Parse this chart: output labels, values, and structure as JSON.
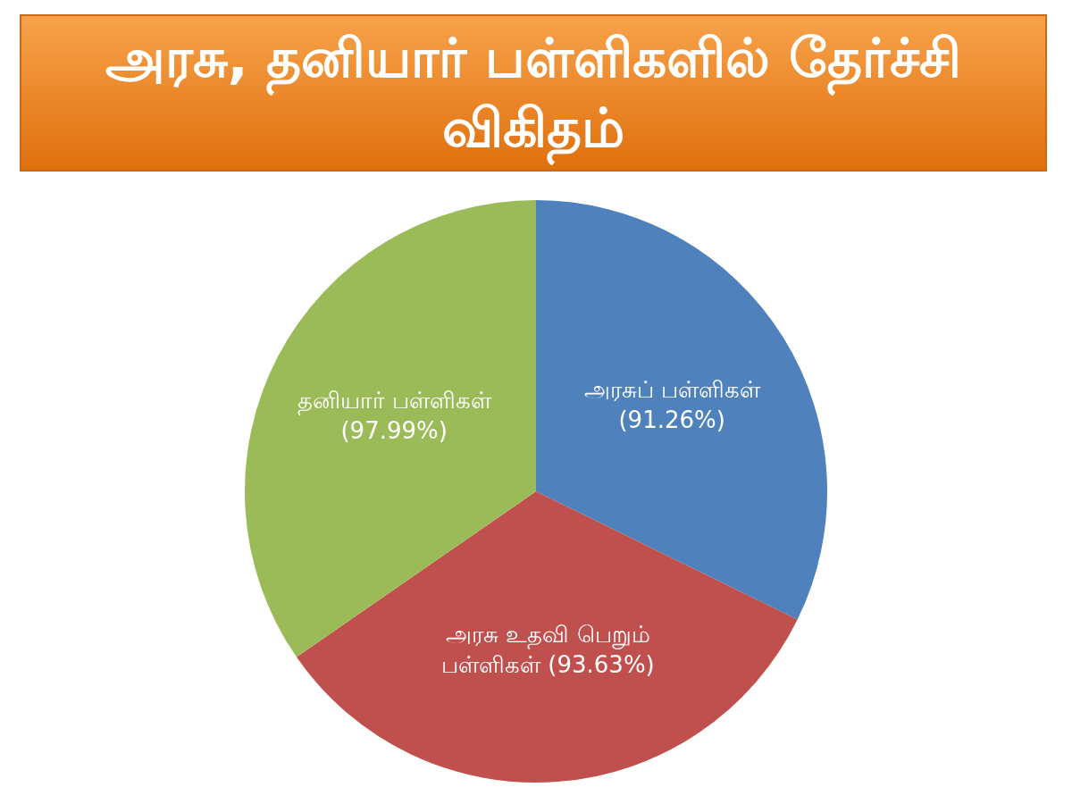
{
  "chart_data": {
    "type": "pie",
    "title": "அரசு, தனியார் பள்ளிகளில் தேர்ச்சி விகிதம்",
    "categories": [
      "அரசுப் பள்ளிகள்",
      "அரசு உதவி பெறும் பள்ளிகள்",
      "தனியார் பள்ளிகள்"
    ],
    "values": [
      91.26,
      93.63,
      97.99
    ],
    "colors": [
      "#4f81bd",
      "#c0504d",
      "#9bbb59"
    ],
    "value_labels": [
      "(91.26%)",
      "(93.63%)",
      "(97.99%)"
    ],
    "legend": false
  }
}
